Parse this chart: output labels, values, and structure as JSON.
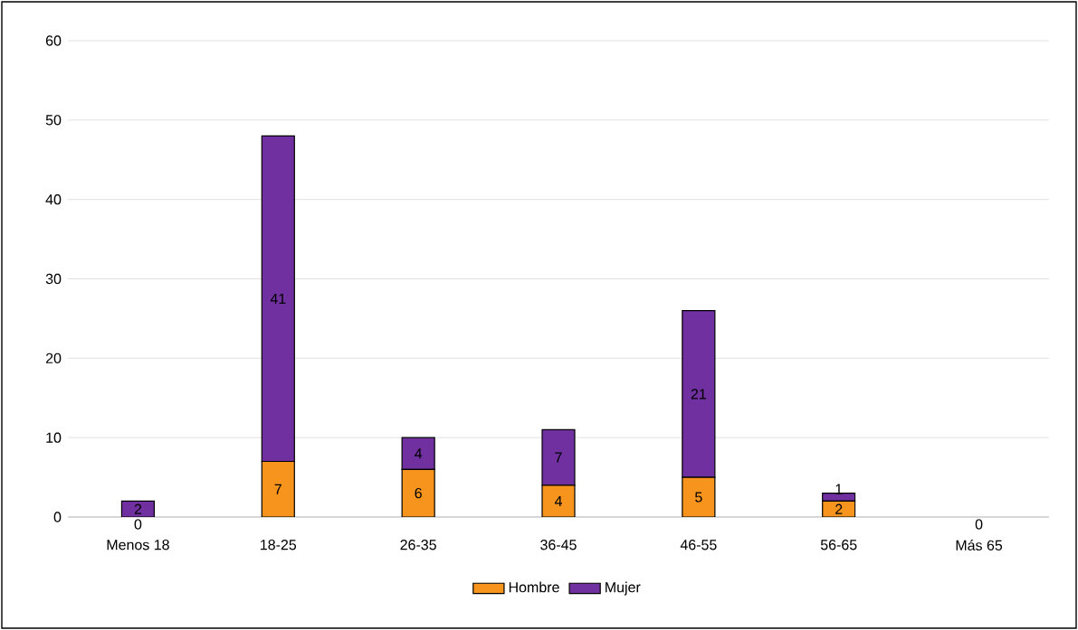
{
  "chart_data": {
    "type": "bar",
    "stacked": true,
    "categories": [
      "Menos 18",
      "18-25",
      "26-35",
      "36-45",
      "46-55",
      "56-65",
      "Más 65"
    ],
    "series": [
      {
        "name": "Hombre",
        "color": "#f7941d",
        "values": [
          0,
          7,
          6,
          4,
          5,
          2,
          0
        ]
      },
      {
        "name": "Mujer",
        "color": "#7030a0",
        "values": [
          2,
          41,
          4,
          7,
          21,
          1,
          0
        ],
        "value_labels": [
          "2",
          "41",
          "4",
          "7",
          "21",
          "1",
          null
        ]
      }
    ],
    "ylim": [
      0,
      60
    ],
    "yticks": [
      0,
      10,
      20,
      30,
      40,
      50,
      60
    ],
    "grid": "y",
    "legend": "bottom",
    "data_labels": true
  }
}
